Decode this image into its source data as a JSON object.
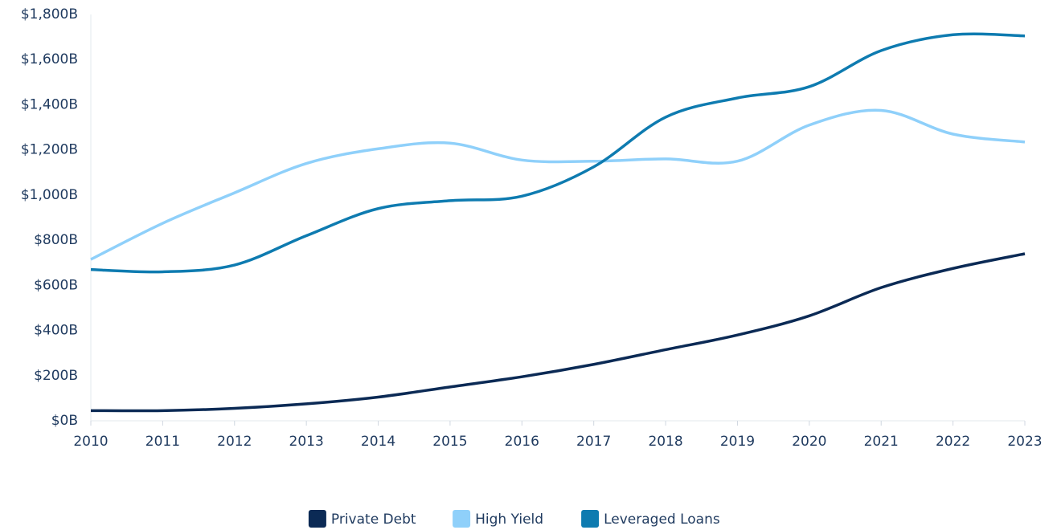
{
  "chart_data": {
    "type": "line",
    "x": [
      2010,
      2011,
      2012,
      2013,
      2014,
      2015,
      2016,
      2017,
      2018,
      2019,
      2020,
      2021,
      2022,
      2023
    ],
    "xlim": [
      2010,
      2023
    ],
    "xticks": [
      2010,
      2011,
      2012,
      2013,
      2014,
      2015,
      2016,
      2017,
      2018,
      2019,
      2020,
      2021,
      2022,
      2023
    ],
    "ylim": [
      0,
      1800
    ],
    "yticks": [
      {
        "value": 0,
        "label": "$0B"
      },
      {
        "value": 200,
        "label": "$200B"
      },
      {
        "value": 400,
        "label": "$400B"
      },
      {
        "value": 600,
        "label": "$600B"
      },
      {
        "value": 800,
        "label": "$800B"
      },
      {
        "value": 1000,
        "label": "$1,000B"
      },
      {
        "value": 1200,
        "label": "$1,200B"
      },
      {
        "value": 1400,
        "label": "$1,400B"
      },
      {
        "value": 1600,
        "label": "$1,600B"
      },
      {
        "value": 1800,
        "label": "$1,800B"
      }
    ],
    "grid": false,
    "legend": "bottom",
    "series": [
      {
        "name": "Private Debt",
        "color": "#0b2a55",
        "values": [
          45,
          45,
          55,
          75,
          105,
          150,
          195,
          250,
          315,
          380,
          465,
          590,
          675,
          740
        ]
      },
      {
        "name": "High Yield",
        "color": "#8fd0fa",
        "values": [
          715,
          875,
          1010,
          1140,
          1205,
          1230,
          1155,
          1150,
          1160,
          1150,
          1310,
          1375,
          1270,
          1235
        ]
      },
      {
        "name": "Leveraged Loans",
        "color": "#0e7bb0",
        "values": [
          670,
          660,
          690,
          820,
          940,
          975,
          995,
          1125,
          1345,
          1430,
          1480,
          1640,
          1710,
          1705
        ]
      }
    ]
  }
}
